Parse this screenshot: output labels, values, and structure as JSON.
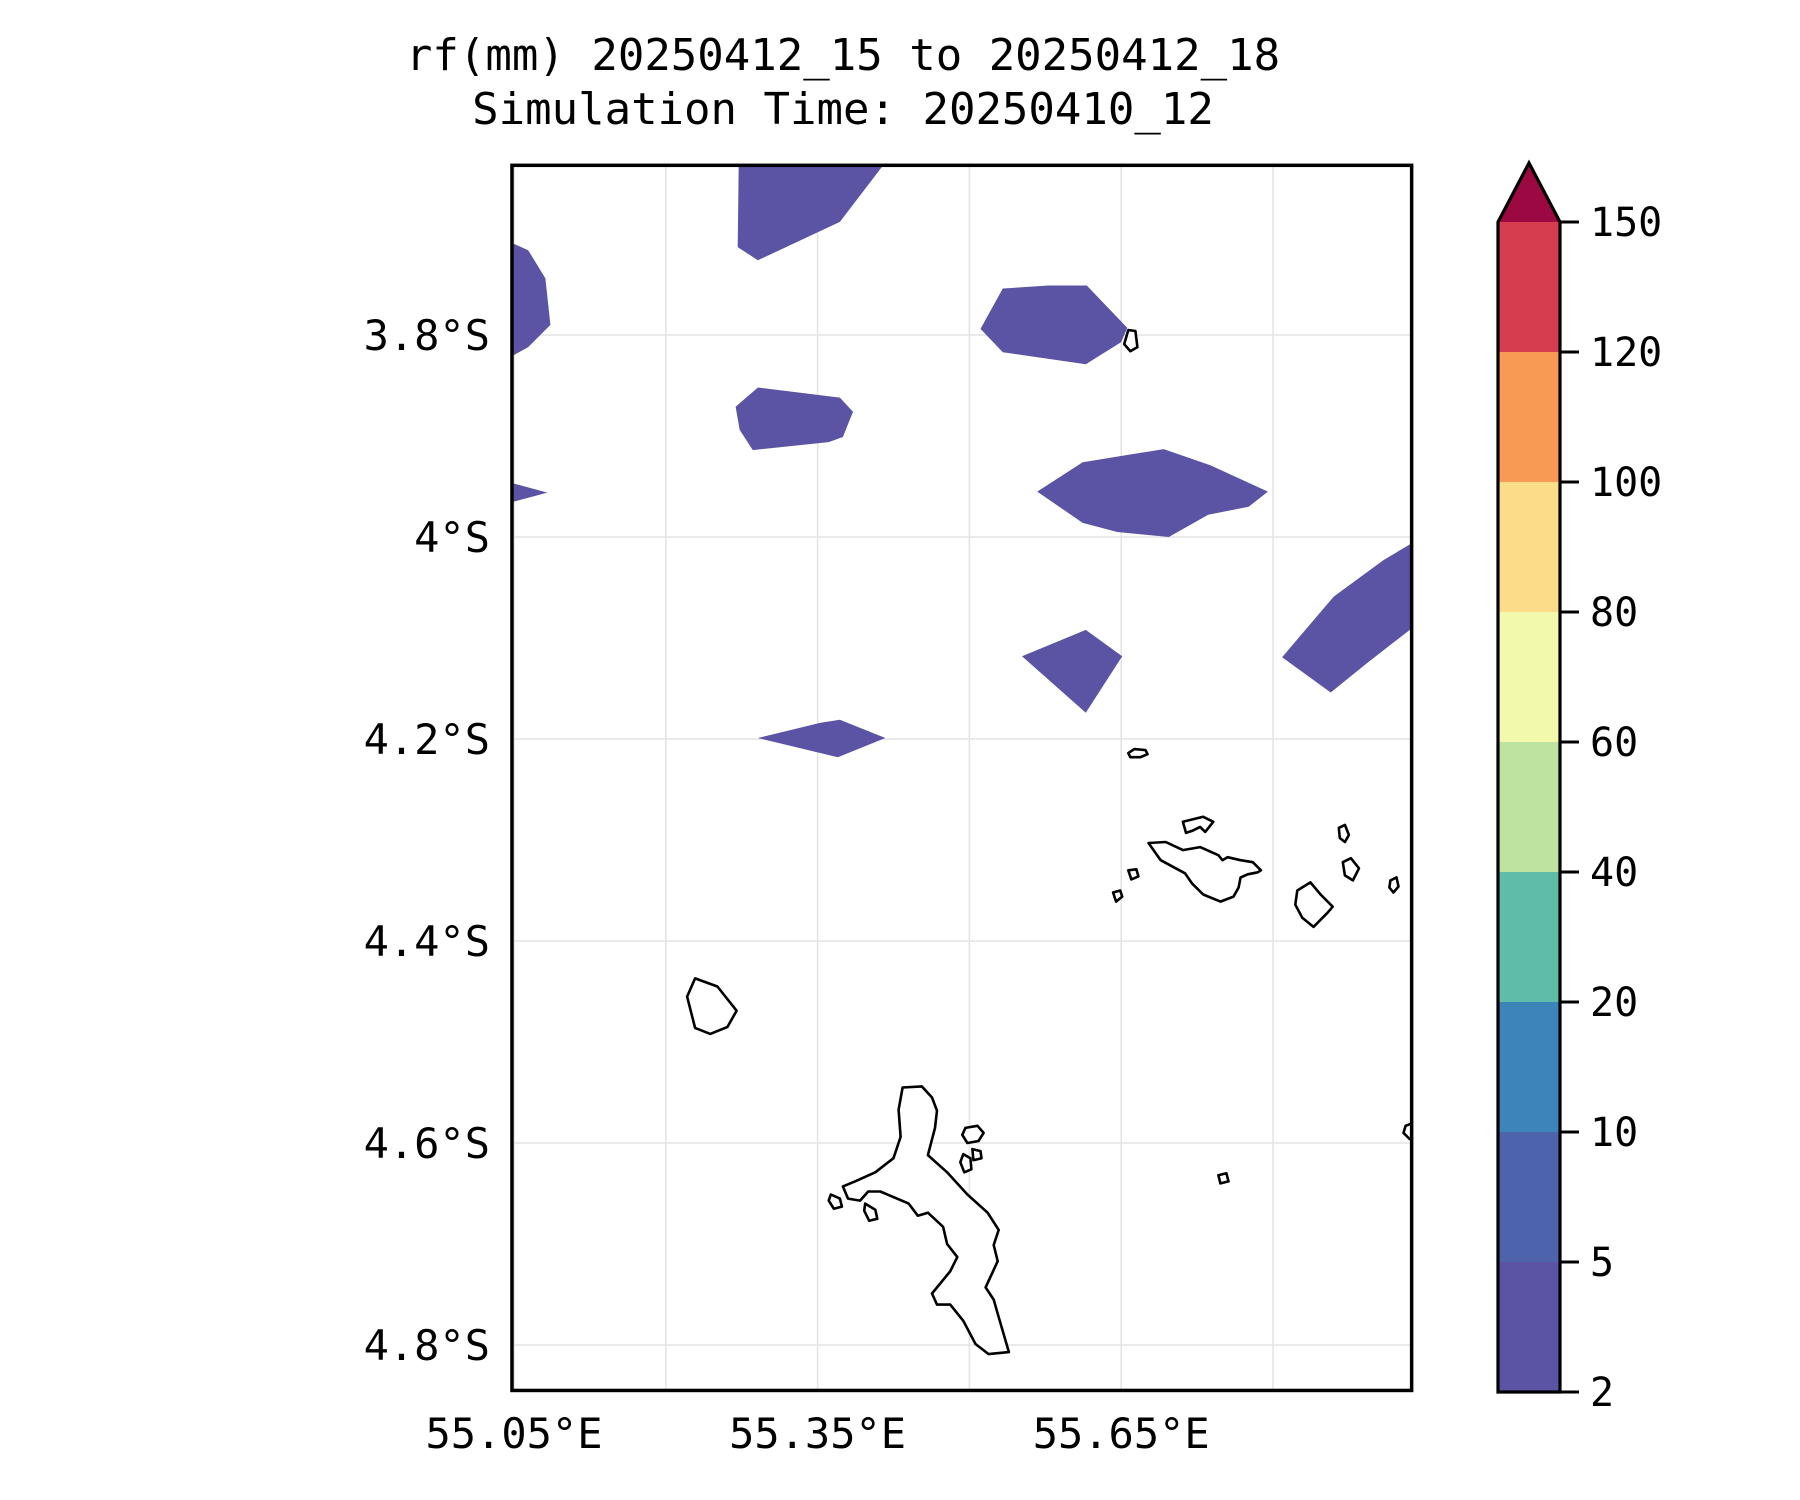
{
  "title": {
    "line1": "rf(mm) 20250412_15 to 20250412_18",
    "line2": "Simulation Time: 20250410_12"
  },
  "chart_data": {
    "type": "heatmap",
    "subtype": "filled-contour-precipitation-map",
    "title": "rf(mm) 20250412_15 to 20250412_18",
    "subtitle": "Simulation Time: 20250410_12",
    "variable": "rf (mm)",
    "grid": "on",
    "axes": {
      "lon_range": [
        55.048,
        55.937
      ],
      "lat_range": [
        3.632,
        4.845
      ],
      "lon_ticks": [
        {
          "value": 55.05,
          "label": "55.05°E"
        },
        {
          "value": 55.2,
          "label": ""
        },
        {
          "value": 55.35,
          "label": "55.35°E"
        },
        {
          "value": 55.5,
          "label": ""
        },
        {
          "value": 55.65,
          "label": "55.65°E"
        },
        {
          "value": 55.8,
          "label": ""
        }
      ],
      "lat_ticks": [
        {
          "value": 3.8,
          "label": "3.8°S"
        },
        {
          "value": 4.0,
          "label": "4°S"
        },
        {
          "value": 4.2,
          "label": "4.2°S"
        },
        {
          "value": 4.4,
          "label": "4.4°S"
        },
        {
          "value": 4.6,
          "label": "4.6°S"
        },
        {
          "value": 4.8,
          "label": "4.8°S"
        }
      ]
    },
    "colorbar": {
      "levels": [
        2,
        5,
        10,
        20,
        40,
        60,
        80,
        100,
        120,
        150
      ],
      "colors": [
        "#5b54a4",
        "#4d63ac",
        "#3d84ba",
        "#5fbca9",
        "#bce4a0",
        "#f2f9ad",
        "#fbdd89",
        "#f89a53",
        "#d63e4f"
      ],
      "over_color": "#9b0842",
      "legend_position": "right"
    },
    "rain_regions": [
      {
        "level_mm": "2-5",
        "polygon": [
          [
            55.272,
            3.632
          ],
          [
            55.271,
            3.713
          ],
          [
            55.291,
            3.726
          ],
          [
            55.372,
            3.688
          ],
          [
            55.414,
            3.633
          ]
        ]
      },
      {
        "level_mm": "2-5",
        "polygon": [
          [
            55.046,
            3.708
          ],
          [
            55.064,
            3.716
          ],
          [
            55.081,
            3.744
          ],
          [
            55.086,
            3.79
          ],
          [
            55.064,
            3.812
          ],
          [
            55.046,
            3.822
          ]
        ]
      },
      {
        "level_mm": "2-5",
        "polygon": [
          [
            55.046,
            3.946
          ],
          [
            55.083,
            3.956
          ],
          [
            55.046,
            3.966
          ]
        ]
      },
      {
        "level_mm": "2-5",
        "polygon": [
          [
            55.269,
            3.871
          ],
          [
            55.291,
            3.852
          ],
          [
            55.372,
            3.862
          ],
          [
            55.385,
            3.876
          ],
          [
            55.375,
            3.901
          ],
          [
            55.361,
            3.906
          ],
          [
            55.286,
            3.914
          ],
          [
            55.273,
            3.894
          ]
        ]
      },
      {
        "level_mm": "2-5",
        "polygon": [
          [
            55.511,
            3.794
          ],
          [
            55.533,
            3.754
          ],
          [
            55.578,
            3.751
          ],
          [
            55.616,
            3.751
          ],
          [
            55.656,
            3.793
          ],
          [
            55.65,
            3.807
          ],
          [
            55.615,
            3.829
          ],
          [
            55.533,
            3.817
          ]
        ]
      },
      {
        "level_mm": "2-5",
        "polygon": [
          [
            55.567,
            3.955
          ],
          [
            55.612,
            3.926
          ],
          [
            55.692,
            3.913
          ],
          [
            55.738,
            3.929
          ],
          [
            55.795,
            3.955
          ],
          [
            55.776,
            3.97
          ],
          [
            55.736,
            3.978
          ],
          [
            55.697,
            4.0
          ],
          [
            55.646,
            3.995
          ],
          [
            55.612,
            3.986
          ]
        ]
      },
      {
        "level_mm": "2-5",
        "polygon": [
          [
            55.552,
            4.118
          ],
          [
            55.615,
            4.092
          ],
          [
            55.651,
            4.118
          ],
          [
            55.615,
            4.174
          ]
        ]
      },
      {
        "level_mm": "2-5",
        "polygon": [
          [
            55.939,
            4.005
          ],
          [
            55.909,
            4.023
          ],
          [
            55.86,
            4.059
          ],
          [
            55.809,
            4.119
          ],
          [
            55.857,
            4.154
          ],
          [
            55.894,
            4.124
          ],
          [
            55.939,
            4.089
          ]
        ]
      },
      {
        "level_mm": "2-5",
        "polygon": [
          [
            55.291,
            4.199
          ],
          [
            55.353,
            4.184
          ],
          [
            55.372,
            4.181
          ],
          [
            55.417,
            4.199
          ],
          [
            55.37,
            4.218
          ]
        ]
      }
    ],
    "coastlines": [
      {
        "points": [
          [
            55.434,
            4.545
          ],
          [
            55.453,
            4.544
          ],
          [
            55.463,
            4.555
          ],
          [
            55.468,
            4.568
          ],
          [
            55.466,
            4.585
          ],
          [
            55.459,
            4.612
          ],
          [
            55.478,
            4.629
          ],
          [
            55.498,
            4.651
          ],
          [
            55.518,
            4.669
          ],
          [
            55.529,
            4.686
          ],
          [
            55.524,
            4.701
          ],
          [
            55.528,
            4.717
          ],
          [
            55.516,
            4.743
          ],
          [
            55.524,
            4.755
          ],
          [
            55.528,
            4.769
          ],
          [
            55.539,
            4.807
          ],
          [
            55.519,
            4.809
          ],
          [
            55.506,
            4.799
          ],
          [
            55.494,
            4.776
          ],
          [
            55.481,
            4.76
          ],
          [
            55.468,
            4.76
          ],
          [
            55.463,
            4.749
          ],
          [
            55.481,
            4.727
          ],
          [
            55.488,
            4.713
          ],
          [
            55.478,
            4.7
          ],
          [
            55.474,
            4.683
          ],
          [
            55.459,
            4.669
          ],
          [
            55.449,
            4.672
          ],
          [
            55.44,
            4.66
          ],
          [
            55.412,
            4.648
          ],
          [
            55.4,
            4.648
          ],
          [
            55.392,
            4.657
          ],
          [
            55.38,
            4.655
          ],
          [
            55.375,
            4.643
          ],
          [
            55.387,
            4.638
          ],
          [
            55.407,
            4.629
          ],
          [
            55.425,
            4.615
          ],
          [
            55.432,
            4.594
          ],
          [
            55.43,
            4.567
          ]
        ]
      },
      {
        "points": [
          [
            55.229,
            4.437
          ],
          [
            55.251,
            4.445
          ],
          [
            55.27,
            4.469
          ],
          [
            55.261,
            4.485
          ],
          [
            55.244,
            4.492
          ],
          [
            55.229,
            4.486
          ],
          [
            55.221,
            4.455
          ]
        ]
      },
      {
        "points": [
          [
            55.677,
            4.303
          ],
          [
            55.694,
            4.302
          ],
          [
            55.711,
            4.31
          ],
          [
            55.728,
            4.307
          ],
          [
            55.746,
            4.315
          ],
          [
            55.75,
            4.32
          ],
          [
            55.755,
            4.317
          ],
          [
            55.768,
            4.32
          ],
          [
            55.78,
            4.322
          ],
          [
            55.788,
            4.33
          ],
          [
            55.785,
            4.332
          ],
          [
            55.775,
            4.334
          ],
          [
            55.768,
            4.337
          ],
          [
            55.766,
            4.347
          ],
          [
            55.761,
            4.356
          ],
          [
            55.748,
            4.361
          ],
          [
            55.731,
            4.354
          ],
          [
            55.72,
            4.343
          ],
          [
            55.713,
            4.333
          ],
          [
            55.689,
            4.32
          ]
        ]
      },
      {
        "points": [
          [
            55.711,
            4.282
          ],
          [
            55.731,
            4.277
          ],
          [
            55.741,
            4.282
          ],
          [
            55.733,
            4.292
          ],
          [
            55.728,
            4.287
          ],
          [
            55.72,
            4.291
          ],
          [
            55.714,
            4.293
          ]
        ]
      },
      {
        "points": [
          [
            55.837,
            4.342
          ],
          [
            55.824,
            4.35
          ],
          [
            55.822,
            4.364
          ],
          [
            55.829,
            4.377
          ],
          [
            55.84,
            4.386
          ],
          [
            55.854,
            4.372
          ],
          [
            55.859,
            4.366
          ],
          [
            55.847,
            4.354
          ]
        ]
      },
      {
        "points": [
          [
            55.869,
            4.322
          ],
          [
            55.877,
            4.318
          ],
          [
            55.885,
            4.328
          ],
          [
            55.879,
            4.34
          ],
          [
            55.871,
            4.335
          ]
        ]
      },
      {
        "points": [
          [
            55.865,
            4.288
          ],
          [
            55.871,
            4.285
          ],
          [
            55.875,
            4.295
          ],
          [
            55.871,
            4.302
          ],
          [
            55.866,
            4.298
          ]
        ]
      },
      {
        "points": [
          [
            55.916,
            4.34
          ],
          [
            55.922,
            4.337
          ],
          [
            55.924,
            4.346
          ],
          [
            55.919,
            4.352
          ],
          [
            55.915,
            4.347
          ]
        ]
      },
      {
        "points": [
          [
            55.657,
            4.33
          ],
          [
            55.665,
            4.329
          ],
          [
            55.667,
            4.336
          ],
          [
            55.66,
            4.339
          ]
        ]
      },
      {
        "points": [
          [
            55.642,
            4.352
          ],
          [
            55.649,
            4.35
          ],
          [
            55.651,
            4.356
          ],
          [
            55.645,
            4.361
          ]
        ]
      },
      {
        "points": [
          [
            55.657,
            4.214
          ],
          [
            55.663,
            4.21
          ],
          [
            55.674,
            4.211
          ],
          [
            55.676,
            4.215
          ],
          [
            55.669,
            4.218
          ],
          [
            55.659,
            4.218
          ]
        ]
      },
      {
        "points": [
          [
            55.657,
            3.795
          ],
          [
            55.653,
            3.809
          ],
          [
            55.659,
            3.816
          ],
          [
            55.666,
            3.812
          ],
          [
            55.664,
            3.796
          ]
        ]
      },
      {
        "points": [
          [
            55.363,
            4.651
          ],
          [
            55.372,
            4.655
          ],
          [
            55.374,
            4.663
          ],
          [
            55.366,
            4.665
          ],
          [
            55.361,
            4.657
          ]
        ]
      },
      {
        "points": [
          [
            55.397,
            4.66
          ],
          [
            55.407,
            4.666
          ],
          [
            55.409,
            4.675
          ],
          [
            55.401,
            4.677
          ],
          [
            55.396,
            4.667
          ]
        ]
      },
      {
        "points": [
          [
            55.496,
            4.585
          ],
          [
            55.508,
            4.583
          ],
          [
            55.514,
            4.59
          ],
          [
            55.509,
            4.598
          ],
          [
            55.498,
            4.6
          ],
          [
            55.493,
            4.592
          ]
        ]
      },
      {
        "points": [
          [
            55.503,
            4.606
          ],
          [
            55.511,
            4.608
          ],
          [
            55.512,
            4.615
          ],
          [
            55.504,
            4.617
          ]
        ]
      },
      {
        "points": [
          [
            55.494,
            4.611
          ],
          [
            55.501,
            4.615
          ],
          [
            55.502,
            4.626
          ],
          [
            55.495,
            4.629
          ],
          [
            55.491,
            4.619
          ]
        ]
      },
      {
        "points": [
          [
            55.939,
            4.58
          ],
          [
            55.931,
            4.583
          ],
          [
            55.929,
            4.59
          ],
          [
            55.935,
            4.596
          ],
          [
            55.939,
            4.597
          ]
        ]
      },
      {
        "points": [
          [
            55.746,
            4.632
          ],
          [
            55.754,
            4.63
          ],
          [
            55.756,
            4.638
          ],
          [
            55.748,
            4.64
          ]
        ]
      }
    ]
  }
}
